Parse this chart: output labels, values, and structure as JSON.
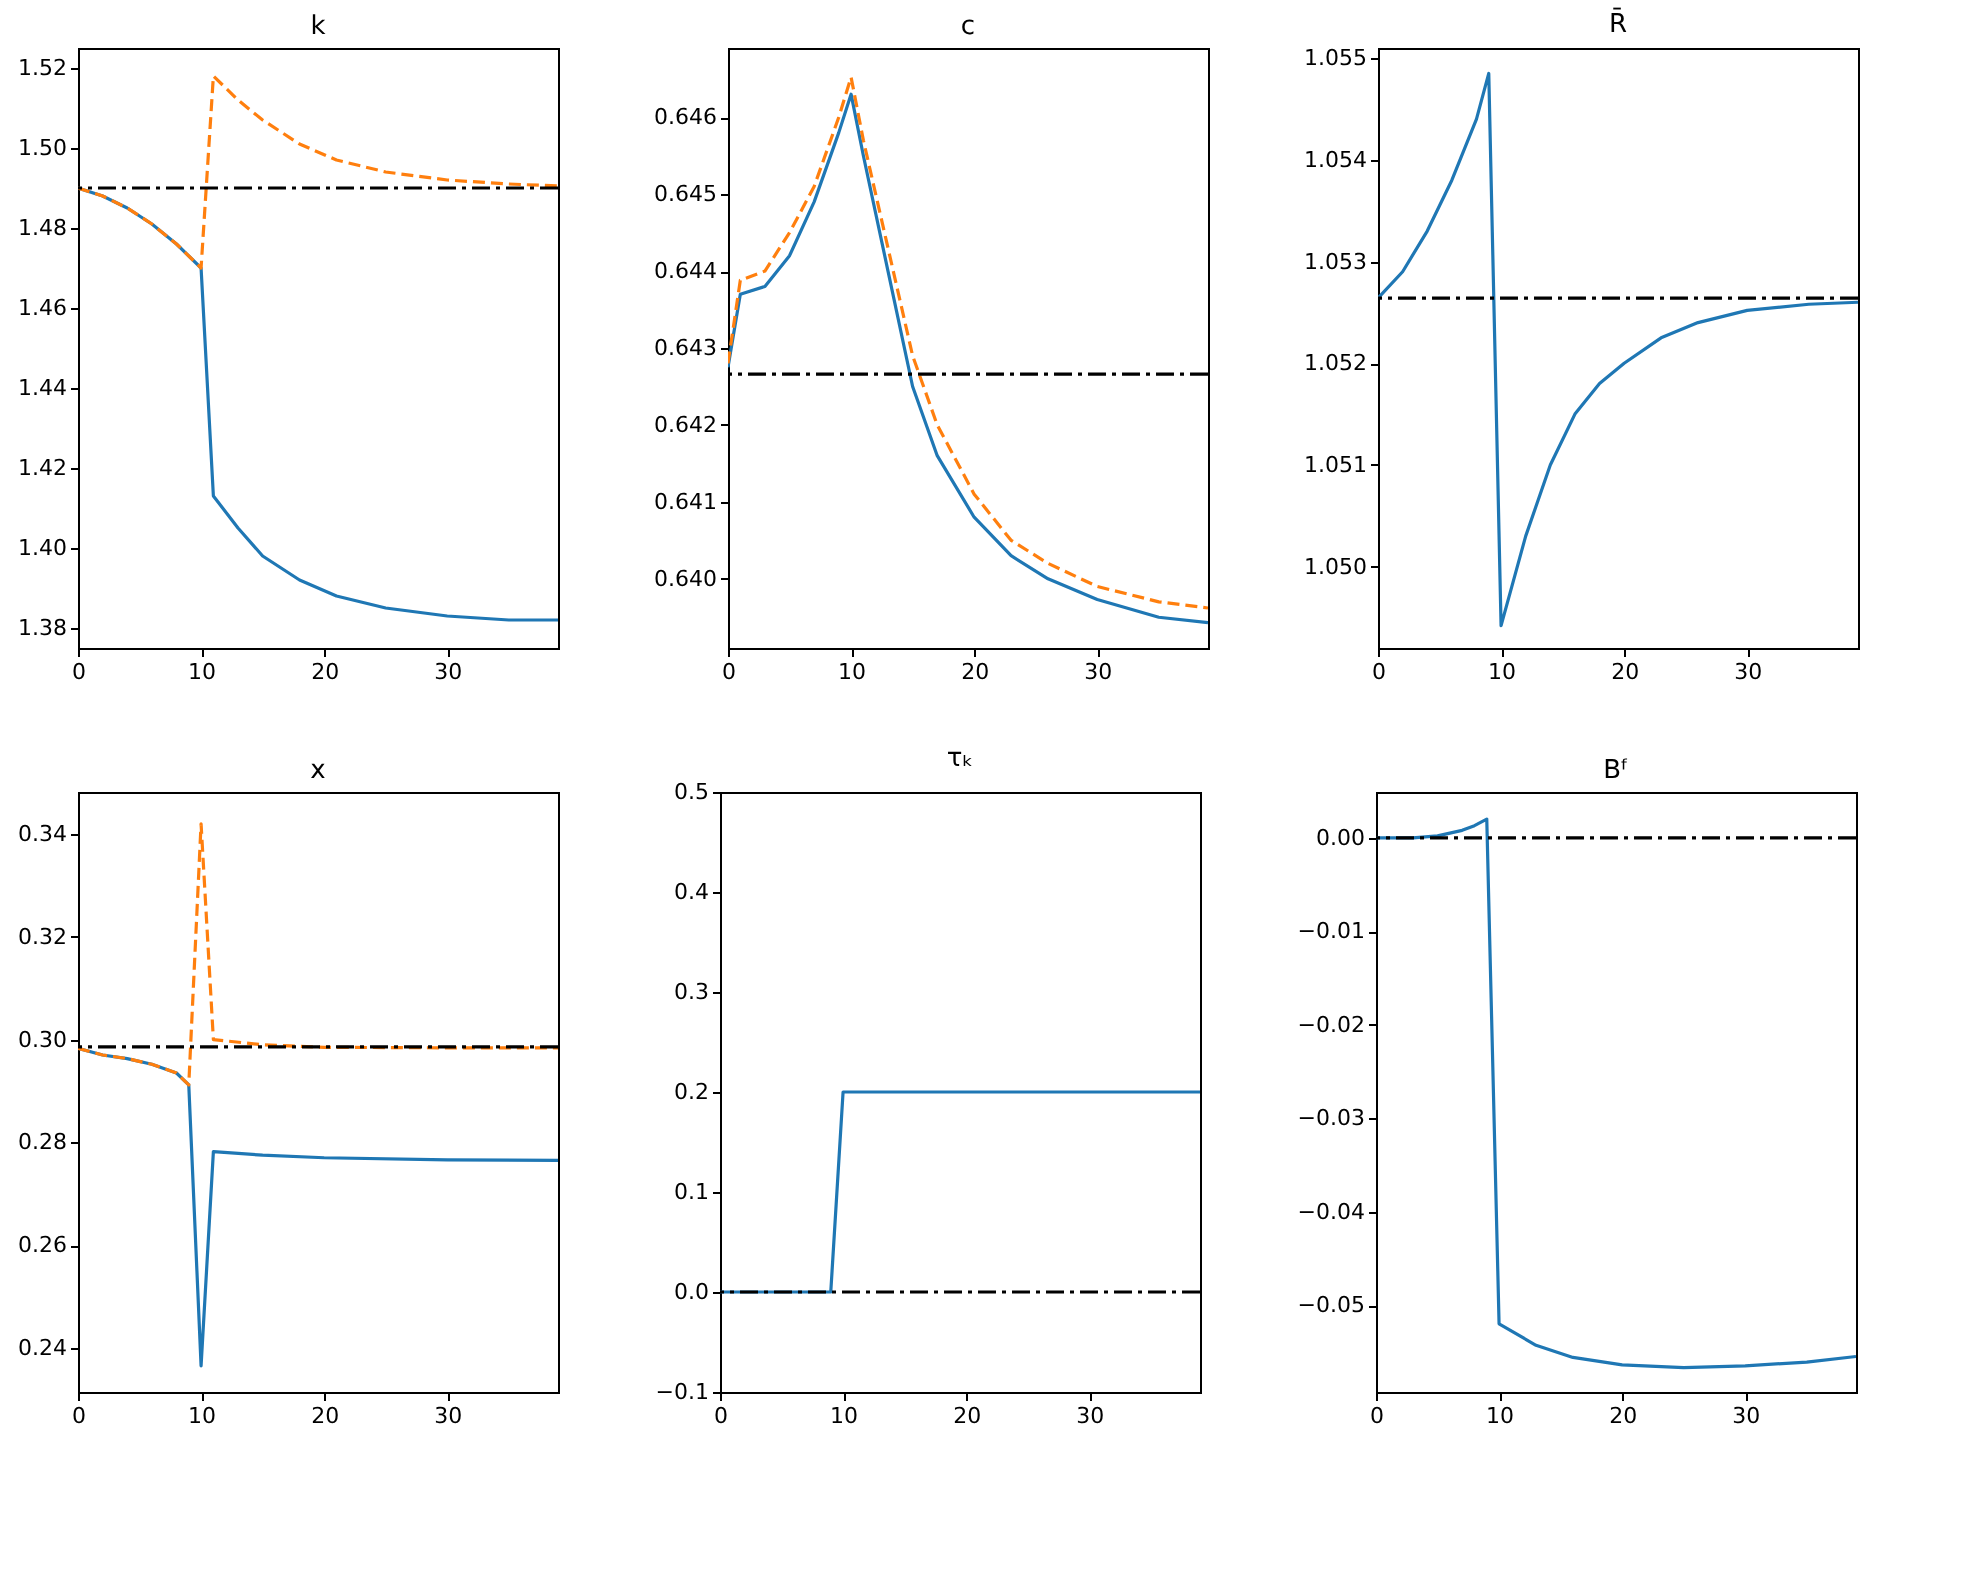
{
  "chart_data": [
    {
      "type": "line",
      "title": "k",
      "xlim": [
        0,
        39
      ],
      "xticks": [
        0,
        10,
        20,
        30
      ],
      "ylim": [
        1.375,
        1.525
      ],
      "yticks": [
        1.38,
        {
          "value": 1.4,
          "label": "1.40"
        },
        1.42,
        1.44,
        1.46,
        1.48,
        {
          "value": 1.5,
          "label": "1.50"
        },
        1.52
      ],
      "grid": false,
      "legend": false,
      "ref_lines": [
        {
          "axis": "y",
          "value": 1.49,
          "color": "#000000",
          "line_style": "dashdot"
        }
      ],
      "series": [
        {
          "color": "#1f77b4",
          "line_style": "solid",
          "x": [
            0,
            2,
            4,
            6,
            8,
            10,
            11,
            13,
            15,
            18,
            21,
            25,
            30,
            35,
            39
          ],
          "values": [
            1.49,
            1.488,
            1.485,
            1.481,
            1.476,
            1.47,
            1.413,
            1.405,
            1.398,
            1.392,
            1.388,
            1.385,
            1.383,
            1.382,
            1.382
          ]
        },
        {
          "color": "#ff7f0e",
          "line_style": "dashed",
          "x": [
            0,
            2,
            4,
            6,
            8,
            10,
            11,
            13,
            15,
            18,
            21,
            25,
            30,
            35,
            39
          ],
          "values": [
            1.49,
            1.488,
            1.485,
            1.481,
            1.476,
            1.47,
            1.518,
            1.512,
            1.507,
            1.501,
            1.497,
            1.494,
            1.492,
            1.491,
            1.4905
          ]
        }
      ]
    },
    {
      "type": "line",
      "title": "c",
      "xlim": [
        0,
        39
      ],
      "xticks": [
        0,
        10,
        20,
        30
      ],
      "ylim": [
        0.6391,
        0.6469
      ],
      "yticks": [
        {
          "value": 0.64,
          "label": "0.640"
        },
        0.641,
        0.642,
        0.643,
        0.644,
        0.645,
        0.646
      ],
      "grid": false,
      "legend": false,
      "ref_lines": [
        {
          "axis": "y",
          "value": 0.64266,
          "color": "#000000",
          "line_style": "dashdot"
        }
      ],
      "series": [
        {
          "color": "#1f77b4",
          "line_style": "solid",
          "x": [
            0,
            1,
            3,
            5,
            7,
            9,
            10,
            11,
            13,
            15,
            17,
            20,
            23,
            26,
            30,
            35,
            39
          ],
          "values": [
            0.64275,
            0.6437,
            0.6438,
            0.6442,
            0.6449,
            0.6458,
            0.6463,
            0.6455,
            0.644,
            0.6425,
            0.6416,
            0.6408,
            0.6403,
            0.64,
            0.63973,
            0.6395,
            0.63943
          ]
        },
        {
          "color": "#ff7f0e",
          "line_style": "dashed",
          "x": [
            0,
            1,
            3,
            5,
            7,
            9,
            10,
            11,
            13,
            15,
            17,
            20,
            23,
            26,
            30,
            35,
            39
          ],
          "values": [
            0.6428,
            0.64388,
            0.644,
            0.6445,
            0.6451,
            0.646,
            0.64652,
            0.6457,
            0.6443,
            0.6429,
            0.642,
            0.6411,
            0.6405,
            0.6402,
            0.6399,
            0.6397,
            0.63962
          ]
        }
      ]
    },
    {
      "type": "line",
      "title": "R̄",
      "xlim": [
        0,
        39
      ],
      "xticks": [
        0,
        10,
        20,
        30
      ],
      "ylim": [
        1.0492,
        1.0551
      ],
      "yticks": [
        {
          "value": 1.05,
          "label": "1.050"
        },
        1.051,
        1.052,
        1.053,
        1.054,
        1.055
      ],
      "grid": false,
      "legend": false,
      "ref_lines": [
        {
          "axis": "y",
          "value": 1.05264,
          "color": "#000000",
          "line_style": "dashdot"
        }
      ],
      "series": [
        {
          "color": "#1f77b4",
          "line_style": "solid",
          "x": [
            0,
            2,
            4,
            6,
            8,
            9,
            10,
            12,
            14,
            16,
            18,
            20,
            23,
            26,
            30,
            35,
            39
          ],
          "values": [
            1.05264,
            1.0529,
            1.0533,
            1.0538,
            1.0544,
            1.05485,
            1.04942,
            1.0503,
            1.051,
            1.0515,
            1.0518,
            1.052,
            1.05225,
            1.0524,
            1.05252,
            1.05258,
            1.0526
          ]
        }
      ]
    },
    {
      "type": "line",
      "title": "x",
      "xlim": [
        0,
        39
      ],
      "xticks": [
        0,
        10,
        20,
        30
      ],
      "ylim": [
        0.2314,
        0.3482
      ],
      "yticks": [
        0.24,
        0.26,
        0.28,
        {
          "value": 0.3,
          "label": "0.30"
        },
        0.32,
        0.34
      ],
      "grid": false,
      "legend": false,
      "ref_lines": [
        {
          "axis": "y",
          "value": 0.2986,
          "color": "#000000",
          "line_style": "dashdot"
        }
      ],
      "series": [
        {
          "color": "#1f77b4",
          "line_style": "solid",
          "x": [
            0,
            2,
            4,
            6,
            8,
            9,
            10,
            11,
            15,
            20,
            30,
            39
          ],
          "values": [
            0.2983,
            0.297,
            0.2963,
            0.2952,
            0.2935,
            0.2912,
            0.2365,
            0.2782,
            0.2775,
            0.277,
            0.2766,
            0.2765
          ]
        },
        {
          "color": "#ff7f0e",
          "line_style": "dashed",
          "x": [
            0,
            2,
            4,
            6,
            8,
            9,
            10,
            11,
            15,
            20,
            30,
            39
          ],
          "values": [
            0.2983,
            0.297,
            0.2963,
            0.2952,
            0.2935,
            0.2912,
            0.342,
            0.3,
            0.299,
            0.2985,
            0.2984,
            0.2984
          ]
        }
      ]
    },
    {
      "type": "line",
      "title": "τₖ",
      "xlim": [
        0,
        39
      ],
      "xticks": [
        0,
        10,
        20,
        30
      ],
      "ylim": [
        -0.1,
        0.5
      ],
      "yticks": [
        -0.1,
        {
          "value": 0,
          "label": "0.0"
        },
        0.1,
        0.2,
        0.3,
        0.4,
        0.5
      ],
      "grid": false,
      "legend": false,
      "ref_lines": [
        {
          "axis": "y",
          "value": 0.0,
          "color": "#000000",
          "line_style": "dashdot"
        }
      ],
      "series": [
        {
          "color": "#1f77b4",
          "line_style": "solid",
          "x": [
            0,
            9,
            10,
            39
          ],
          "values": [
            0.0,
            0.0,
            0.2,
            0.2
          ]
        }
      ]
    },
    {
      "type": "line",
      "title": "Bᶠ",
      "xlim": [
        0,
        39
      ],
      "xticks": [
        0,
        10,
        20,
        30
      ],
      "ylim": [
        -0.0593,
        0.0049
      ],
      "yticks": [
        -0.05,
        -0.04,
        -0.03,
        -0.02,
        -0.01,
        {
          "value": 0,
          "label": "0.00"
        }
      ],
      "grid": false,
      "legend": false,
      "ref_lines": [
        {
          "axis": "y",
          "value": 0.0,
          "color": "#000000",
          "line_style": "dashdot"
        }
      ],
      "series": [
        {
          "color": "#1f77b4",
          "line_style": "solid",
          "x": [
            0,
            3,
            5,
            7,
            8,
            9,
            10,
            13,
            16,
            20,
            25,
            30,
            35,
            39
          ],
          "values": [
            0.0,
            0.0,
            0.0002,
            0.0008,
            0.0013,
            0.002,
            -0.052,
            -0.0543,
            -0.0556,
            -0.0564,
            -0.0567,
            -0.0565,
            -0.0561,
            -0.0555
          ]
        }
      ]
    }
  ]
}
